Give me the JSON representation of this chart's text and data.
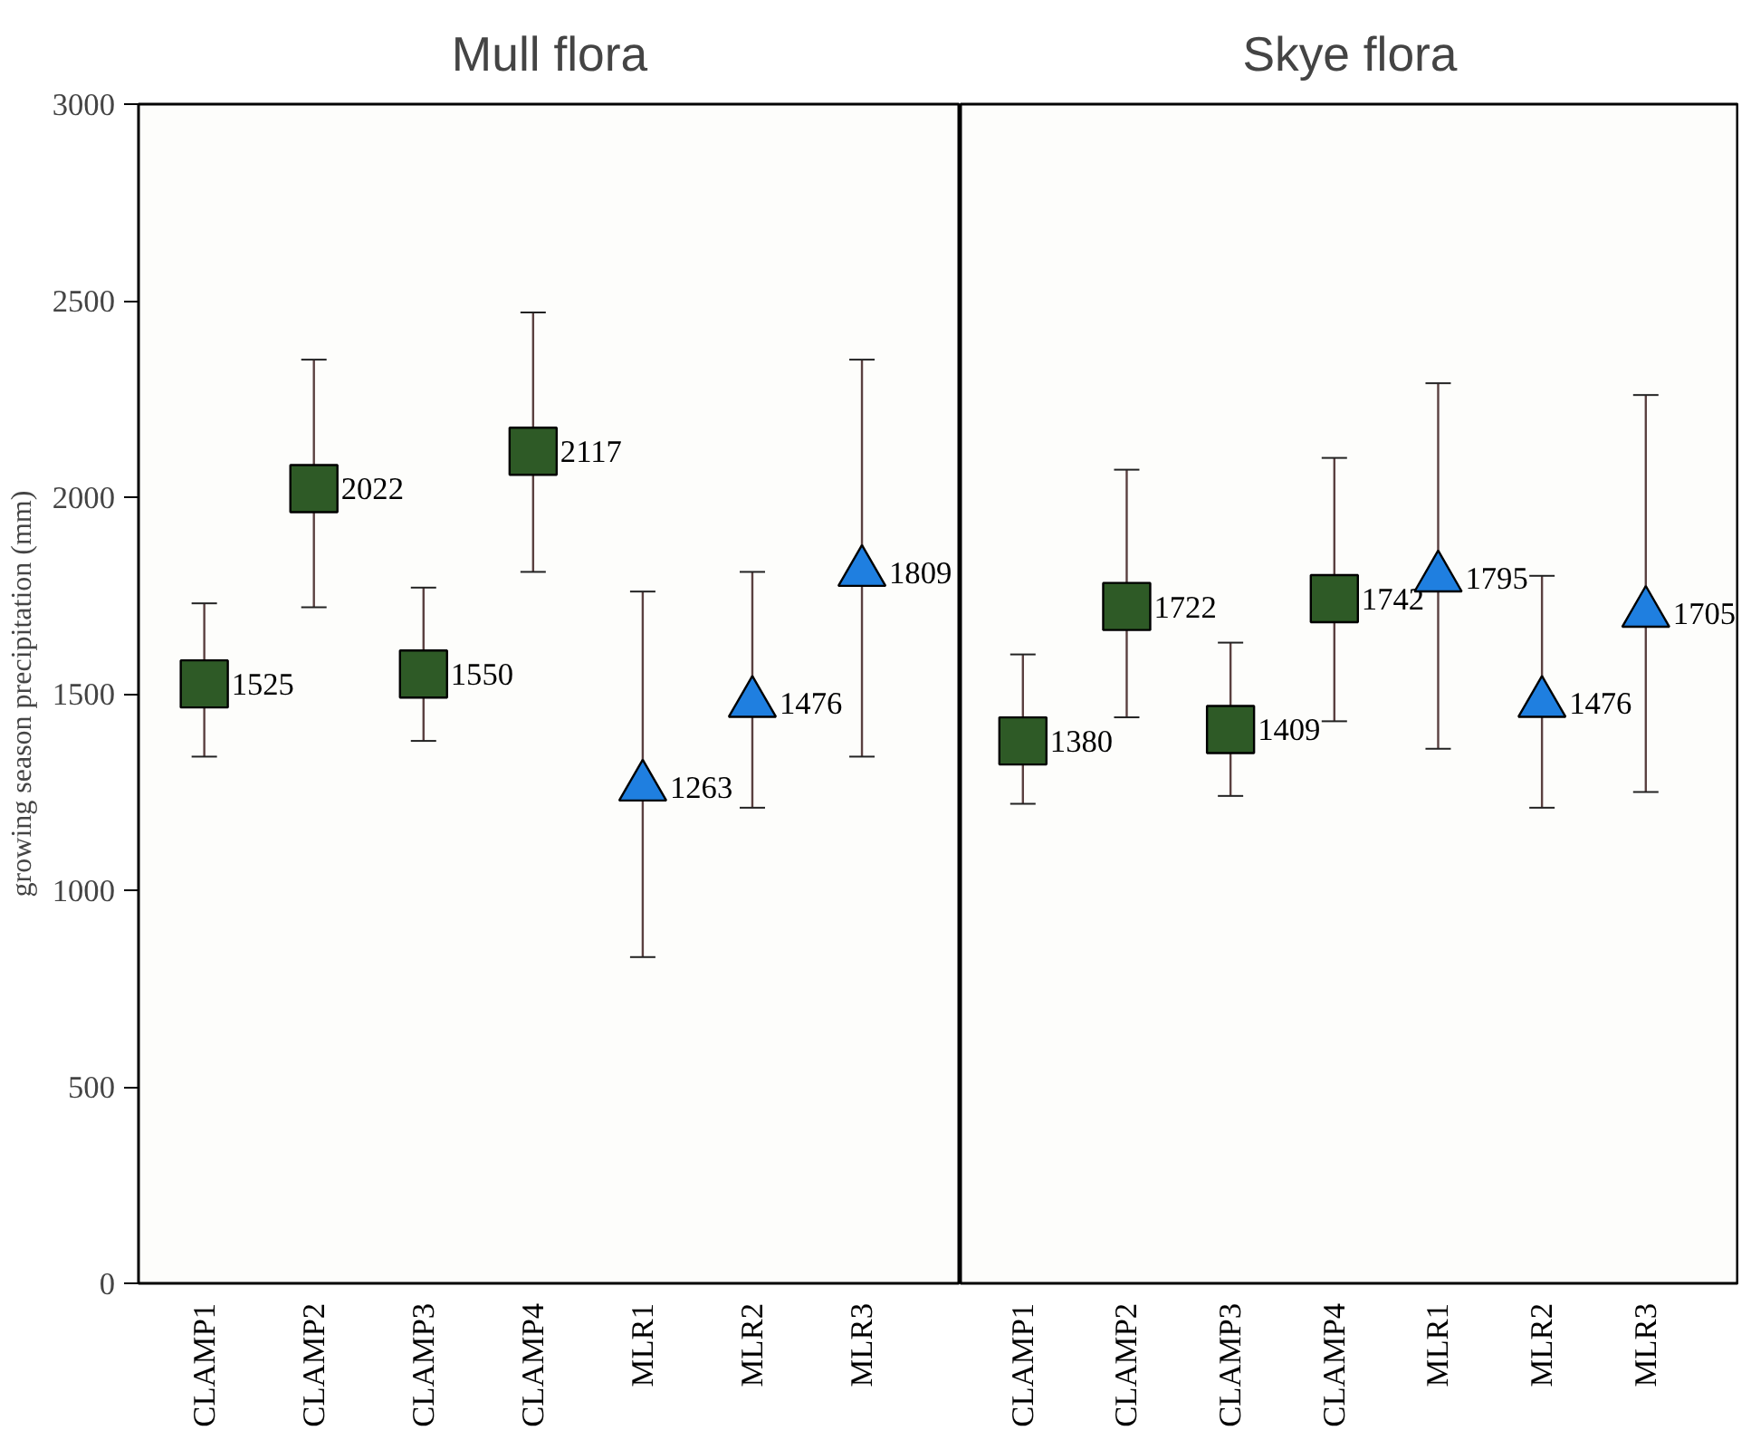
{
  "chart_data": [
    {
      "type": "scatter",
      "title": "Mull flora",
      "ylabel": "growing season precipitation (mm)",
      "categories": [
        "CLAMP1",
        "CLAMP2",
        "CLAMP3",
        "CLAMP4",
        "MLR1",
        "MLR2",
        "MLR3"
      ],
      "series": [
        {
          "color": "#2e5a26",
          "marker": "square",
          "values": [
            1525,
            2022,
            1550,
            2117,
            null,
            null,
            null
          ],
          "errors": [
            [
              1340,
              1730
            ],
            [
              1720,
              2350
            ],
            [
              1380,
              1770
            ],
            [
              1810,
              2470
            ],
            null,
            null,
            null
          ]
        },
        {
          "color": "#1f7fe0",
          "marker": "triangle",
          "values": [
            null,
            null,
            null,
            null,
            1263,
            1476,
            1809
          ],
          "errors": [
            null,
            null,
            null,
            null,
            [
              830,
              1760
            ],
            [
              1210,
              1810
            ],
            [
              1340,
              2350
            ]
          ]
        }
      ],
      "ylim": [
        0,
        3000
      ],
      "yticks": [
        0,
        500,
        1000,
        1500,
        2000,
        2500,
        3000
      ],
      "data_labels": true
    },
    {
      "type": "scatter",
      "title": "Skye flora",
      "categories": [
        "CLAMP1",
        "CLAMP2",
        "CLAMP3",
        "CLAMP4",
        "MLR1",
        "MLR2",
        "MLR3"
      ],
      "series": [
        {
          "color": "#2e5a26",
          "marker": "square",
          "values": [
            1380,
            1722,
            1409,
            1742,
            null,
            null,
            null
          ],
          "errors": [
            [
              1220,
              1600
            ],
            [
              1440,
              2070
            ],
            [
              1240,
              1630
            ],
            [
              1430,
              2100
            ],
            null,
            null,
            null
          ]
        },
        {
          "color": "#1f7fe0",
          "marker": "triangle",
          "values": [
            null,
            null,
            null,
            null,
            1795,
            1476,
            1705
          ],
          "errors": [
            null,
            null,
            null,
            null,
            [
              1360,
              2290
            ],
            [
              1210,
              1800
            ],
            [
              1250,
              2260
            ]
          ]
        }
      ],
      "ylim": [
        0,
        3000
      ],
      "yticks": [
        0,
        500,
        1000,
        1500,
        2000,
        2500,
        3000
      ],
      "data_labels": true,
      "tick_labels": "x"
    }
  ]
}
